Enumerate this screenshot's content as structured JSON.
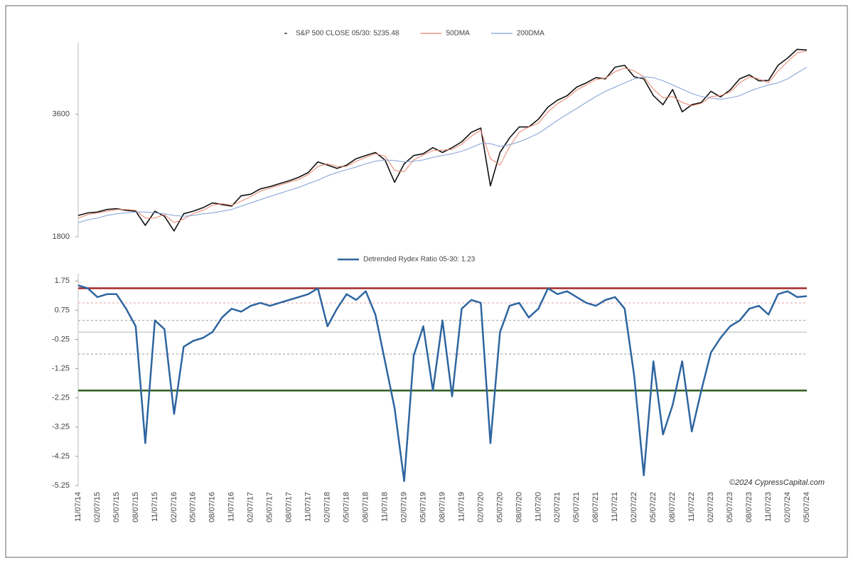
{
  "chart_data": [
    {
      "type": "line",
      "log_scale": true,
      "ylim": [
        1800,
        5400
      ],
      "yticks": [
        1800,
        3600
      ],
      "series": [
        {
          "name": "S&P 500 CLOSE 05/30: 5235.48",
          "color": "#111111",
          "values": [
            2030,
            2060,
            2070,
            2100,
            2110,
            2090,
            2080,
            1920,
            2080,
            2020,
            1860,
            2050,
            2080,
            2120,
            2180,
            2160,
            2140,
            2270,
            2290,
            2360,
            2390,
            2430,
            2470,
            2520,
            2590,
            2750,
            2700,
            2650,
            2700,
            2800,
            2850,
            2900,
            2780,
            2450,
            2720,
            2850,
            2880,
            2980,
            2900,
            2980,
            3080,
            3250,
            3330,
            2400,
            2900,
            3150,
            3350,
            3350,
            3500,
            3750,
            3900,
            4000,
            4200,
            4300,
            4430,
            4400,
            4700,
            4750,
            4450,
            4400,
            4000,
            3800,
            4140,
            3650,
            3800,
            3850,
            4100,
            3970,
            4130,
            4400,
            4500,
            4350,
            4360,
            4750,
            4950,
            5200,
            5180
          ]
        },
        {
          "name": "50DMA",
          "color": "#e8836b",
          "values": [
            2000,
            2040,
            2060,
            2080,
            2100,
            2100,
            2090,
            2000,
            2000,
            2040,
            1950,
            1990,
            2050,
            2090,
            2150,
            2170,
            2150,
            2200,
            2260,
            2330,
            2370,
            2410,
            2450,
            2490,
            2560,
            2680,
            2720,
            2680,
            2680,
            2760,
            2820,
            2880,
            2840,
            2620,
            2600,
            2780,
            2860,
            2930,
            2940,
            2950,
            3040,
            3180,
            3290,
            2800,
            2700,
            3000,
            3250,
            3350,
            3420,
            3650,
            3820,
            3950,
            4130,
            4250,
            4380,
            4420,
            4580,
            4680,
            4600,
            4450,
            4150,
            3950,
            3980,
            3850,
            3780,
            3830,
            3980,
            4000,
            4080,
            4300,
            4450,
            4400,
            4300,
            4600,
            4850,
            5100,
            5150
          ]
        },
        {
          "name": "200DMA",
          "color": "#7f9fd4",
          "values": [
            1950,
            1980,
            2000,
            2030,
            2050,
            2060,
            2070,
            2070,
            2060,
            2050,
            2030,
            2020,
            2030,
            2050,
            2060,
            2080,
            2100,
            2140,
            2180,
            2220,
            2260,
            2300,
            2340,
            2380,
            2430,
            2480,
            2540,
            2590,
            2630,
            2670,
            2720,
            2760,
            2780,
            2770,
            2750,
            2760,
            2780,
            2820,
            2850,
            2880,
            2920,
            2980,
            3050,
            3050,
            3000,
            3030,
            3080,
            3150,
            3230,
            3350,
            3480,
            3600,
            3720,
            3850,
            3980,
            4100,
            4200,
            4300,
            4400,
            4450,
            4430,
            4350,
            4250,
            4150,
            4050,
            3980,
            3950,
            3920,
            3950,
            4000,
            4100,
            4180,
            4250,
            4300,
            4400,
            4550,
            4700
          ]
        }
      ]
    },
    {
      "type": "line",
      "categories": [
        "11/07/14",
        null,
        "02/07/15",
        null,
        "05/07/15",
        null,
        "08/07/15",
        null,
        "11/07/15",
        null,
        "02/07/16",
        null,
        "05/07/16",
        null,
        "08/07/16",
        null,
        "11/07/16",
        null,
        "02/07/17",
        null,
        "05/07/17",
        null,
        "08/07/17",
        null,
        "11/07/17",
        null,
        "02/07/18",
        null,
        "05/07/18",
        null,
        "08/07/18",
        null,
        "11/07/18",
        null,
        "02/07/19",
        null,
        "05/07/19",
        null,
        "08/07/19",
        null,
        "11/07/19",
        null,
        "02/07/20",
        null,
        "05/07/20",
        null,
        "08/07/20",
        null,
        "11/07/20",
        null,
        "02/07/21",
        null,
        "05/07/21",
        null,
        "08/07/21",
        null,
        "11/07/21",
        null,
        "02/07/22",
        null,
        "05/07/22",
        null,
        "08/07/22",
        null,
        "11/07/22",
        null,
        "02/07/23",
        null,
        "05/07/23",
        null,
        "08/07/23",
        null,
        "11/07/23",
        null,
        "02/07/24",
        null,
        "05/07/24"
      ],
      "ylim": [
        -5.25,
        2.0
      ],
      "yticks": [
        1.75,
        0.75,
        -0.25,
        -1.25,
        -2.25,
        -3.25,
        -4.25,
        -5.25
      ],
      "series": [
        {
          "name": "Detrended Rydex Ratio 05-30: 1.23",
          "color": "#2e65a0",
          "values": [
            1.6,
            1.5,
            1.2,
            1.3,
            1.3,
            0.8,
            0.2,
            -3.8,
            0.4,
            0.1,
            -2.8,
            -0.5,
            -0.3,
            -0.2,
            0.0,
            0.5,
            0.8,
            0.7,
            0.9,
            1.0,
            0.9,
            1.0,
            1.1,
            1.2,
            1.3,
            1.5,
            0.2,
            0.8,
            1.3,
            1.1,
            1.4,
            0.6,
            -1.0,
            -2.6,
            -5.1,
            -0.8,
            0.2,
            -2.0,
            0.4,
            -2.2,
            0.8,
            1.1,
            1.0,
            -3.8,
            0.0,
            0.9,
            1.0,
            0.5,
            0.8,
            1.5,
            1.3,
            1.4,
            1.2,
            1.0,
            0.9,
            1.1,
            1.2,
            0.8,
            -1.5,
            -4.9,
            -1.0,
            -3.5,
            -2.5,
            -1.0,
            -3.4,
            -2.0,
            -0.7,
            -0.2,
            0.2,
            0.4,
            0.8,
            0.9,
            0.6,
            1.3,
            1.4,
            1.2,
            1.23
          ]
        }
      ],
      "reference_lines": [
        {
          "value": 1.5,
          "color": "#a52a2a",
          "style": "thick"
        },
        {
          "value": 1.0,
          "color": "#e8a0a0",
          "style": "dashed"
        },
        {
          "value": 0.4,
          "color": "#999999",
          "style": "dashed"
        },
        {
          "value": 0.0,
          "color": "#bbbbbb",
          "style": "thin"
        },
        {
          "value": -0.75,
          "color": "#999999",
          "style": "dashed"
        },
        {
          "value": -2.0,
          "color": "#2e5a1c",
          "style": "thick"
        }
      ],
      "annotation": "©2024 CypressCapital.com"
    }
  ]
}
